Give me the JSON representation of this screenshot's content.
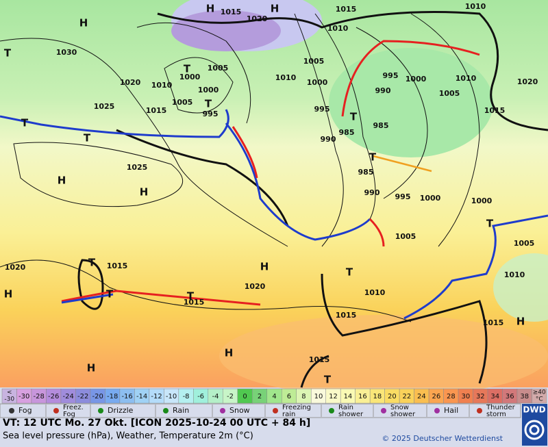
{
  "map": {
    "labels": [
      "1015",
      "1020",
      "1015",
      "1010",
      "H",
      "H",
      "H",
      "1030",
      "1020",
      "1010",
      "1000",
      "1005",
      "1000",
      "1005",
      "1025",
      "1015",
      "995",
      "T",
      "T",
      "T",
      "T",
      "T",
      "1005",
      "1010",
      "1000",
      "995",
      "990",
      "985",
      "985",
      "990",
      "995",
      "1000",
      "1005",
      "1010",
      "1015",
      "1020",
      "1010",
      "1025",
      "H",
      "H",
      "985",
      "990",
      "995",
      "1000",
      "1000",
      "1005",
      "1005",
      "1010",
      "1010",
      "1015",
      "1015",
      "H",
      "H",
      "1020",
      "1015",
      "T",
      "T",
      "T",
      "1015",
      "1020",
      "H",
      "H",
      "H",
      "1015",
      "T",
      "T",
      "T",
      "T",
      "T"
    ]
  },
  "colorbar": [
    {
      "text": [
        "<",
        "-30"
      ],
      "color": "#c8b4e0"
    },
    {
      "text": "-30",
      "color": "#d8a0e0"
    },
    {
      "text": "-28",
      "color": "#c896dc"
    },
    {
      "text": "-26",
      "color": "#b48cdc"
    },
    {
      "text": "-24",
      "color": "#a08cdc"
    },
    {
      "text": "-22",
      "color": "#8c8cdc"
    },
    {
      "text": "-20",
      "color": "#7896e6"
    },
    {
      "text": "-18",
      "color": "#78aaf0"
    },
    {
      "text": "-16",
      "color": "#8cbef0"
    },
    {
      "text": "-14",
      "color": "#a0d2f5"
    },
    {
      "text": "-12",
      "color": "#b4dcfa"
    },
    {
      "text": "-10",
      "color": "#c8e6fa"
    },
    {
      "text": "-8",
      "color": "#b4f0f0"
    },
    {
      "text": "-6",
      "color": "#a0f0dc"
    },
    {
      "text": "-4",
      "color": "#b4f0c8"
    },
    {
      "text": "-2",
      "color": "#c8f5c8"
    },
    {
      "text": "0",
      "color": "#50c850"
    },
    {
      "text": "2",
      "color": "#78d278"
    },
    {
      "text": "4",
      "color": "#a0e68c"
    },
    {
      "text": "6",
      "color": "#beec96"
    },
    {
      "text": "8",
      "color": "#dcf5b4"
    },
    {
      "text": "10",
      "color": "#fafadc"
    },
    {
      "text": "12",
      "color": "#fafac8"
    },
    {
      "text": "14",
      "color": "#fafab4"
    },
    {
      "text": "16",
      "color": "#faf096"
    },
    {
      "text": "18",
      "color": "#fae678"
    },
    {
      "text": "20",
      "color": "#fadc64"
    },
    {
      "text": "22",
      "color": "#fad25a"
    },
    {
      "text": "24",
      "color": "#fabe50"
    },
    {
      "text": "26",
      "color": "#faa550"
    },
    {
      "text": "28",
      "color": "#fa9650"
    },
    {
      "text": "30",
      "color": "#f08050"
    },
    {
      "text": "32",
      "color": "#e6785a"
    },
    {
      "text": "34",
      "color": "#dc6e64"
    },
    {
      "text": "36",
      "color": "#d2787a"
    },
    {
      "text": "38",
      "color": "#c88c8c"
    },
    {
      "text": [
        "≥40",
        "°C"
      ],
      "color": "#d2aaaa"
    }
  ],
  "legend": [
    [
      "Fog"
    ],
    [
      "Freez.",
      "Fog"
    ],
    [
      "Drizzle"
    ],
    [
      "Rain"
    ],
    [
      "Snow"
    ],
    [
      "Freezing",
      "rain"
    ],
    [
      "Rain",
      "shower"
    ],
    [
      "Snow",
      "shower"
    ],
    [
      "Hail"
    ],
    [
      "Thunder",
      "storm"
    ]
  ],
  "footer": {
    "valid_time": "VT: 12 UTC Mo.  27 Okt. [ICON 2025-10-24  00 UTC + 84 h]",
    "description": "Sea level pressure (hPa), Weather, Temperature 2m (°C)",
    "copyright": "© 2025 Deutscher Wetterdienst",
    "logo": "DWD"
  }
}
